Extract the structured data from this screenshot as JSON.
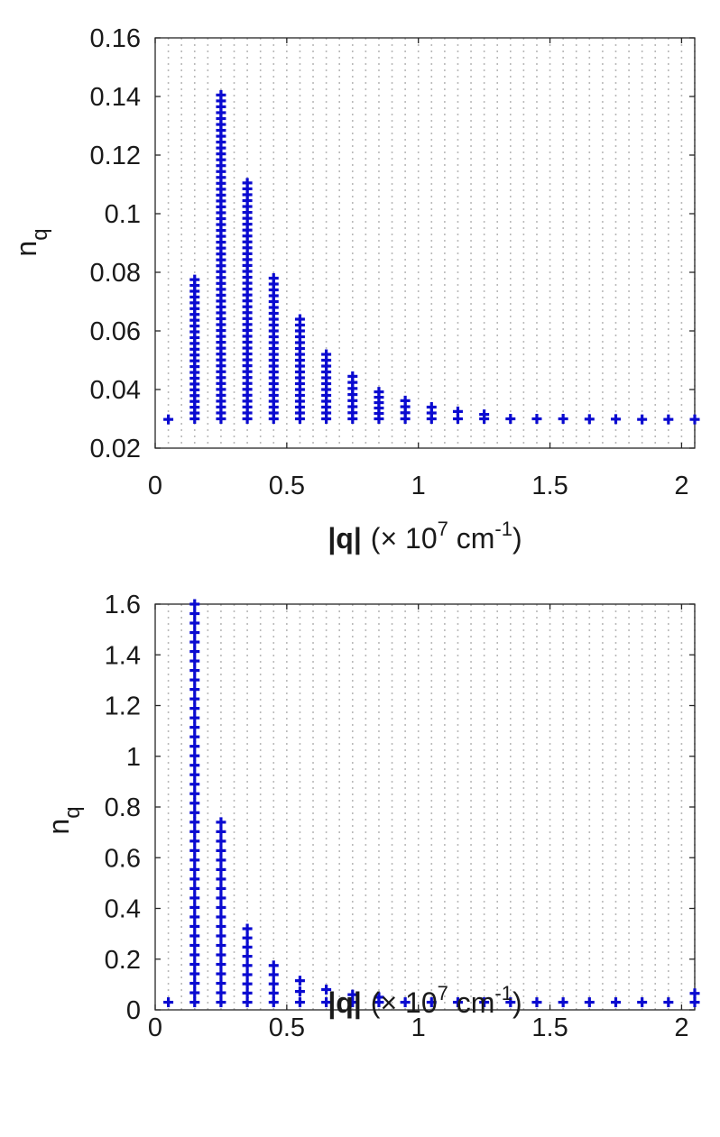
{
  "chart_data": [
    {
      "type": "scatter",
      "marker": "+",
      "color": "#0000cc",
      "grid": "vertical dotted lines at x = 0.05, 0.10, ..., 2.05",
      "xlim": [
        0,
        2.05
      ],
      "ylim": [
        0.02,
        0.16
      ],
      "xticks": [
        "0",
        "0.5",
        "1",
        "1.5",
        "2"
      ],
      "yticks": [
        "0.02",
        "0.04",
        "0.06",
        "0.08",
        "0.1",
        "0.12",
        "0.14",
        "0.16"
      ],
      "xlabel": {
        "main": "|q|",
        "prefix": "(× 10",
        "exp": "7",
        "unit": " cm",
        "unit_exp": "-1",
        "suffix": ")"
      },
      "ylabel": {
        "main": "n",
        "sub": "q"
      },
      "series": [
        {
          "x": 0.05,
          "y_min": 0.0298,
          "y_max": 0.0298
        },
        {
          "x": 0.15,
          "y_min": 0.03,
          "y_max": 0.0775
        },
        {
          "x": 0.25,
          "y_min": 0.03,
          "y_max": 0.1405
        },
        {
          "x": 0.35,
          "y_min": 0.03,
          "y_max": 0.1105
        },
        {
          "x": 0.45,
          "y_min": 0.03,
          "y_max": 0.078
        },
        {
          "x": 0.55,
          "y_min": 0.03,
          "y_max": 0.064
        },
        {
          "x": 0.65,
          "y_min": 0.03,
          "y_max": 0.052
        },
        {
          "x": 0.75,
          "y_min": 0.03,
          "y_max": 0.0445
        },
        {
          "x": 0.85,
          "y_min": 0.03,
          "y_max": 0.0392
        },
        {
          "x": 0.95,
          "y_min": 0.03,
          "y_max": 0.0362
        },
        {
          "x": 1.05,
          "y_min": 0.03,
          "y_max": 0.034
        },
        {
          "x": 1.15,
          "y_min": 0.03,
          "y_max": 0.0325
        },
        {
          "x": 1.25,
          "y_min": 0.03,
          "y_max": 0.0315
        },
        {
          "x": 1.35,
          "y_min": 0.03,
          "y_max": 0.0308
        },
        {
          "x": 1.45,
          "y_min": 0.03,
          "y_max": 0.0303
        },
        {
          "x": 1.55,
          "y_min": 0.03,
          "y_max": 0.0301
        },
        {
          "x": 1.65,
          "y_min": 0.0299,
          "y_max": 0.03
        },
        {
          "x": 1.75,
          "y_min": 0.0299,
          "y_max": 0.0299
        },
        {
          "x": 1.85,
          "y_min": 0.0298,
          "y_max": 0.0298
        },
        {
          "x": 1.95,
          "y_min": 0.0298,
          "y_max": 0.0298
        },
        {
          "x": 2.05,
          "y_min": 0.0298,
          "y_max": 0.0298
        }
      ]
    },
    {
      "type": "scatter",
      "marker": "+",
      "color": "#0000cc",
      "grid": "vertical dotted lines at x = 0.05, 0.10, ..., 2.05",
      "xlim": [
        0,
        2.05
      ],
      "ylim": [
        0,
        1.6
      ],
      "xticks": [
        "0",
        "0.5",
        "1",
        "1.5",
        "2"
      ],
      "yticks": [
        "0",
        "0.2",
        "0.4",
        "0.6",
        "0.8",
        "1",
        "1.2",
        "1.4",
        "1.6"
      ],
      "xlabel": {
        "main": "|q|",
        "prefix": "(× 10",
        "exp": "7",
        "unit": " cm",
        "unit_exp": "-1",
        "suffix": ")"
      },
      "ylabel": {
        "main": "n",
        "sub": "q"
      },
      "series": [
        {
          "x": 0.05,
          "y_min": 0.03,
          "y_max": 0.03
        },
        {
          "x": 0.15,
          "y_min": 0.03,
          "y_max": 1.6
        },
        {
          "x": 0.25,
          "y_min": 0.03,
          "y_max": 0.74
        },
        {
          "x": 0.35,
          "y_min": 0.03,
          "y_max": 0.32
        },
        {
          "x": 0.45,
          "y_min": 0.03,
          "y_max": 0.175
        },
        {
          "x": 0.55,
          "y_min": 0.03,
          "y_max": 0.115
        },
        {
          "x": 0.65,
          "y_min": 0.03,
          "y_max": 0.08
        },
        {
          "x": 0.75,
          "y_min": 0.03,
          "y_max": 0.06
        },
        {
          "x": 0.85,
          "y_min": 0.03,
          "y_max": 0.05
        },
        {
          "x": 0.95,
          "y_min": 0.03,
          "y_max": 0.042
        },
        {
          "x": 1.05,
          "y_min": 0.03,
          "y_max": 0.038
        },
        {
          "x": 1.15,
          "y_min": 0.03,
          "y_max": 0.035
        },
        {
          "x": 1.25,
          "y_min": 0.03,
          "y_max": 0.033
        },
        {
          "x": 1.35,
          "y_min": 0.03,
          "y_max": 0.032
        },
        {
          "x": 1.45,
          "y_min": 0.03,
          "y_max": 0.031
        },
        {
          "x": 1.55,
          "y_min": 0.03,
          "y_max": 0.031
        },
        {
          "x": 1.65,
          "y_min": 0.03,
          "y_max": 0.03
        },
        {
          "x": 1.75,
          "y_min": 0.03,
          "y_max": 0.03
        },
        {
          "x": 1.85,
          "y_min": 0.03,
          "y_max": 0.03
        },
        {
          "x": 1.95,
          "y_min": 0.03,
          "y_max": 0.03
        },
        {
          "x": 2.05,
          "y_min": 0.03,
          "y_max": 0.065
        }
      ]
    }
  ]
}
